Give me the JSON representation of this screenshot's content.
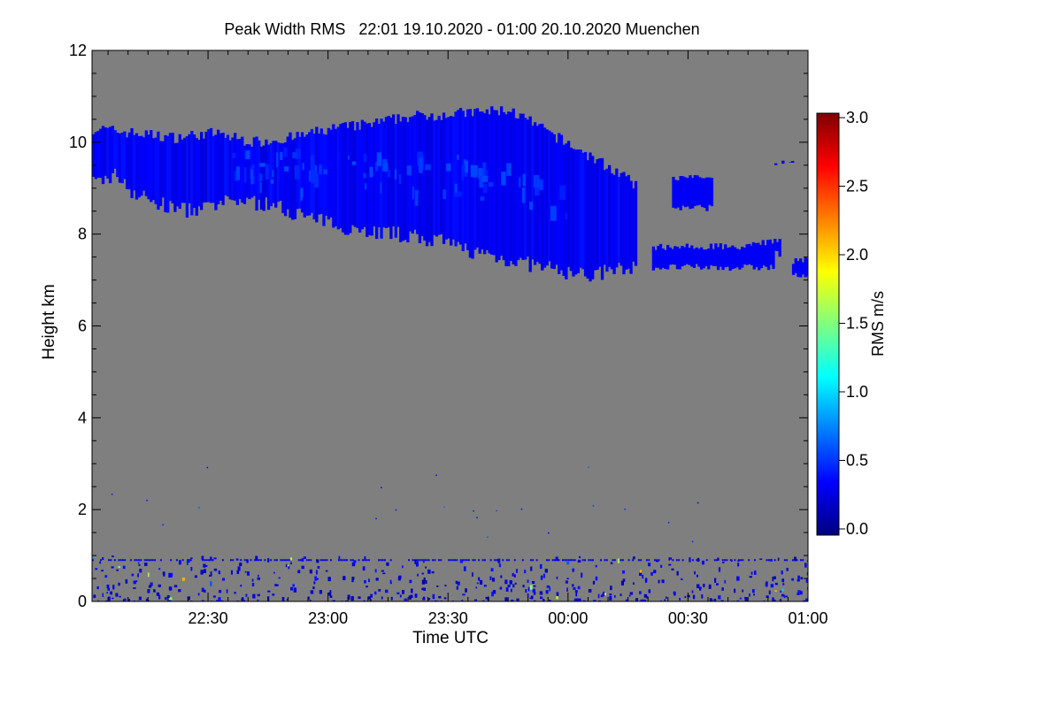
{
  "chart_data": {
    "type": "heatmap",
    "title": "Peak Width RMS   22:01 19.10.2020 - 01:00 20.10.2020 Muenchen",
    "xlabel": "Time UTC",
    "ylabel": "Height km",
    "x_ticks": [
      "22:30",
      "23:00",
      "23:30",
      "00:00",
      "00:30",
      "01:00"
    ],
    "x_tick_values_min": [
      29,
      59,
      89,
      119,
      149,
      179
    ],
    "xlim_min": [
      0,
      179
    ],
    "y_ticks": [
      "0",
      "2",
      "4",
      "6",
      "8",
      "10",
      "12"
    ],
    "y_tick_values": [
      0,
      2,
      4,
      6,
      8,
      10,
      12
    ],
    "ylim": [
      0,
      12
    ],
    "background_color": "#7f7f7f",
    "colorbar": {
      "label": "RMS m/s",
      "ticks": [
        "0.0",
        "0.5",
        "1.0",
        "1.5",
        "2.0",
        "2.5",
        "3.0"
      ],
      "tick_values": [
        0,
        0.5,
        1.0,
        1.5,
        2.0,
        2.5,
        3.0
      ],
      "range": [
        0,
        3.0
      ],
      "colors": [
        "#00007f",
        "#0000ff",
        "#007fff",
        "#00ffff",
        "#7fff7f",
        "#ffff00",
        "#ff7f00",
        "#ff0000",
        "#7f0000"
      ]
    },
    "cloud_layer": {
      "description_values": "upper echo layer approx. 7-10.7 km, RMS mostly 0.2-0.5 m/s",
      "top_km": [
        [
          0,
          10.3
        ],
        [
          10,
          10.2
        ],
        [
          20,
          10.1
        ],
        [
          30,
          10.2
        ],
        [
          40,
          10.0
        ],
        [
          50,
          10.1
        ],
        [
          60,
          10.3
        ],
        [
          70,
          10.4
        ],
        [
          78,
          10.55
        ],
        [
          86,
          10.6
        ],
        [
          96,
          10.65
        ],
        [
          104,
          10.7
        ],
        [
          110,
          10.4
        ],
        [
          118,
          10.0
        ],
        [
          126,
          9.6
        ],
        [
          132,
          9.3
        ],
        [
          136,
          9.0
        ]
      ],
      "bottom_km": [
        [
          0,
          9.1
        ],
        [
          6,
          9.3
        ],
        [
          10,
          8.9
        ],
        [
          18,
          8.6
        ],
        [
          26,
          8.5
        ],
        [
          36,
          8.75
        ],
        [
          46,
          8.6
        ],
        [
          56,
          8.3
        ],
        [
          66,
          8.1
        ],
        [
          76,
          8.0
        ],
        [
          86,
          7.85
        ],
        [
          96,
          7.6
        ],
        [
          106,
          7.4
        ],
        [
          116,
          7.2
        ],
        [
          124,
          7.1
        ],
        [
          130,
          7.2
        ],
        [
          136,
          7.3
        ]
      ],
      "fragments": [
        {
          "time_min": [
            145,
            155
          ],
          "height_km": [
            8.5,
            9.3
          ]
        },
        {
          "time_min": [
            140,
            170
          ],
          "height_km": [
            7.2,
            7.8
          ]
        },
        {
          "time_min": [
            165,
            172
          ],
          "height_km": [
            7.5,
            7.9
          ]
        },
        {
          "time_min": [
            170,
            175
          ],
          "height_km": [
            9.5,
            9.6
          ]
        },
        {
          "time_min": [
            175,
            179
          ],
          "height_km": [
            7.0,
            7.5
          ]
        }
      ],
      "rms_typical": 0.35
    },
    "low_clutter": {
      "height_km": [
        0,
        1.0
      ],
      "line_height_km": 0.9,
      "rms_typical": 0.3
    }
  }
}
